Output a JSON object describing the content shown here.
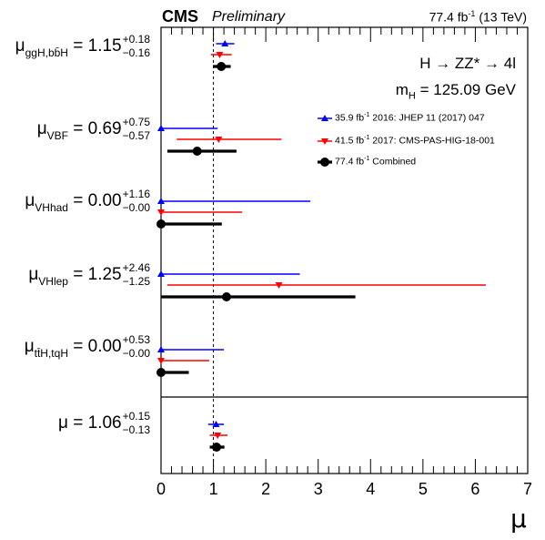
{
  "header": {
    "experiment": "CMS",
    "status": "Preliminary",
    "luminosity": "77.4 fb",
    "lumi_exp": "-1",
    "energy": "(13 TeV)"
  },
  "annotations": {
    "process": "H → ZZ* → 4l",
    "mass": "m",
    "mass_sub": "H",
    "mass_value": " = 125.09 GeV"
  },
  "chart_data": {
    "type": "scatter",
    "title": "",
    "xlabel": "μ",
    "ylabel": "",
    "xlim": [
      0,
      7
    ],
    "x_ticks": [
      "0",
      "1",
      "2",
      "3",
      "4",
      "5",
      "6",
      "7"
    ],
    "reference_line_x": 1,
    "legend_placement": "top-right",
    "series": [
      {
        "name": "35.9 fb-1 2016: JHEP 11 (2017) 047",
        "color": "#0000ff",
        "marker": "triangle-up"
      },
      {
        "name": "41.5 fb-1 2017: CMS-PAS-HIG-18-001",
        "color": "#ff0000",
        "marker": "triangle-down"
      },
      {
        "name": "77.4 fb-1 Combined",
        "color": "#000000",
        "marker": "circle"
      }
    ],
    "legend": [
      {
        "label_main": "35.9 fb",
        "label_exp": "-1",
        "label_rest": " 2016: JHEP 11 (2017) 047"
      },
      {
        "label_main": "41.5 fb",
        "label_exp": "-1",
        "label_rest": " 2017: CMS-PAS-HIG-18-001"
      },
      {
        "label_main": "77.4 fb",
        "label_exp": "-1",
        "label_rest": " Combined"
      }
    ],
    "categories": [
      {
        "symbol": "μ",
        "subscript": "ggH,bb̄H",
        "value": "1.15",
        "up": "+0.18",
        "down": "−0.16",
        "points": [
          {
            "series": 0,
            "value": 1.22,
            "low": 1.05,
            "high": 1.4
          },
          {
            "series": 1,
            "value": 1.12,
            "low": 0.95,
            "high": 1.35
          },
          {
            "series": 2,
            "value": 1.15,
            "low": 0.99,
            "high": 1.33
          }
        ]
      },
      {
        "symbol": "μ",
        "subscript": "VBF",
        "value": "0.69",
        "up": "+0.75",
        "down": "−0.57",
        "points": [
          {
            "series": 0,
            "value": 0.0,
            "low": 0.0,
            "high": 1.08
          },
          {
            "series": 1,
            "value": 1.1,
            "low": 0.3,
            "high": 2.3
          },
          {
            "series": 2,
            "value": 0.69,
            "low": 0.12,
            "high": 1.44
          }
        ]
      },
      {
        "symbol": "μ",
        "subscript": "VHhad",
        "value": "0.00",
        "up": "+1.16",
        "down": "−0.00",
        "points": [
          {
            "series": 0,
            "value": 0.0,
            "low": 0.0,
            "high": 2.85
          },
          {
            "series": 1,
            "value": 0.0,
            "low": 0.0,
            "high": 1.55
          },
          {
            "series": 2,
            "value": 0.0,
            "low": 0.0,
            "high": 1.16
          }
        ]
      },
      {
        "symbol": "μ",
        "subscript": "VHlep",
        "value": "1.25",
        "up": "+2.46",
        "down": "−1.25",
        "points": [
          {
            "series": 0,
            "value": 0.0,
            "low": 0.0,
            "high": 2.65
          },
          {
            "series": 1,
            "value": 2.25,
            "low": 0.12,
            "high": 6.2
          },
          {
            "series": 2,
            "value": 1.25,
            "low": 0.0,
            "high": 3.71
          }
        ]
      },
      {
        "symbol": "μ",
        "subscript": "tt̄H,tqH",
        "value": "0.00",
        "up": "+0.53",
        "down": "−0.00",
        "points": [
          {
            "series": 0,
            "value": 0.0,
            "low": 0.0,
            "high": 1.2
          },
          {
            "series": 1,
            "value": 0.0,
            "low": 0.0,
            "high": 0.92
          },
          {
            "series": 2,
            "value": 0.0,
            "low": 0.0,
            "high": 0.53
          }
        ]
      },
      {
        "symbol": "μ",
        "subscript": "",
        "value": "1.06",
        "up": "+0.15",
        "down": "−0.13",
        "points": [
          {
            "series": 0,
            "value": 1.05,
            "low": 0.9,
            "high": 1.2
          },
          {
            "series": 1,
            "value": 1.08,
            "low": 0.93,
            "high": 1.27
          },
          {
            "series": 2,
            "value": 1.06,
            "low": 0.93,
            "high": 1.21
          }
        ]
      }
    ]
  }
}
